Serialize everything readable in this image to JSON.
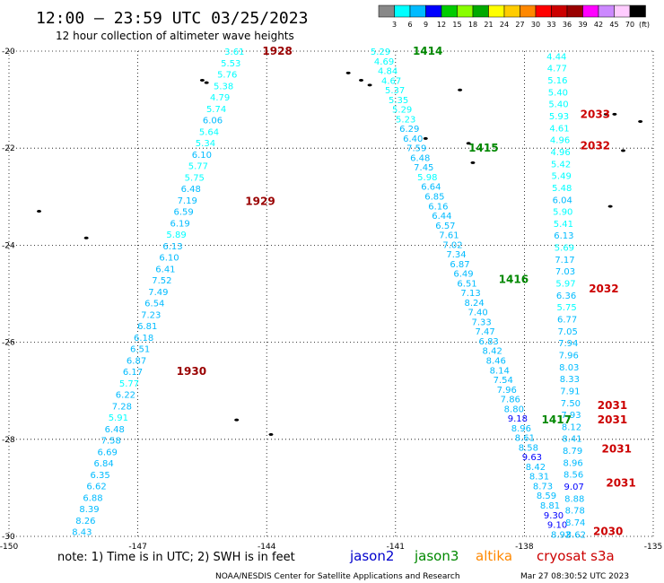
{
  "header": {
    "title": "12:00 – 23:59 UTC 03/25/2023",
    "subtitle": "12 hour collection of altimeter wave heights"
  },
  "legend": {
    "unit": "(ft)",
    "colors": [
      "#888888",
      "#00ffff",
      "#00bbff",
      "#0000ff",
      "#00cc00",
      "#88ff00",
      "#00aa00",
      "#ffff00",
      "#ffcc00",
      "#ff8800",
      "#ff0000",
      "#cc0000",
      "#990000",
      "#ff00ff",
      "#cc88ff",
      "#ffccff",
      "#000000"
    ],
    "labels": [
      "3",
      "6",
      "9",
      "12",
      "15",
      "18",
      "21",
      "24",
      "27",
      "30",
      "33",
      "36",
      "39",
      "42",
      "45",
      "70"
    ]
  },
  "axes": {
    "x_ticks": [
      "-150",
      "-147",
      "-144",
      "-141",
      "-138",
      "-135"
    ],
    "y_ticks": [
      "-20",
      "-22",
      "-24",
      "-26",
      "-28",
      "-30"
    ]
  },
  "footer": {
    "note": "note: 1) Time is in UTC; 2) SWH is in feet",
    "satellites": [
      {
        "name": "jason2",
        "color": "#0000cc"
      },
      {
        "name": "jason3",
        "color": "#008800"
      },
      {
        "name": "altika",
        "color": "#ff8800"
      },
      {
        "name": "cryosat s3a",
        "color": "#cc0000"
      }
    ],
    "credit": "NOAA/NESDIS Center for Satellite Applications and Research",
    "timestamp": "Mar 27 08:30:52 UTC 2023"
  },
  "chart_data": {
    "type": "scatter",
    "xlim": [
      -150,
      -135
    ],
    "ylim": [
      -30,
      -20
    ],
    "grid": true,
    "color_scale_ft": [
      3,
      6,
      9,
      12,
      15,
      18,
      21,
      24,
      27,
      30,
      33,
      36,
      39,
      42,
      45,
      70
    ],
    "pass_labels": [
      {
        "text": "1928",
        "x": -144.1,
        "y": -20.0,
        "color": "#990000"
      },
      {
        "text": "1929",
        "x": -144.5,
        "y": -23.1,
        "color": "#990000"
      },
      {
        "text": "1930",
        "x": -146.1,
        "y": -26.6,
        "color": "#990000"
      },
      {
        "text": "1414",
        "x": -140.6,
        "y": -20.0,
        "color": "#008800"
      },
      {
        "text": "1415",
        "x": -139.3,
        "y": -22.0,
        "color": "#008800"
      },
      {
        "text": "1416",
        "x": -138.6,
        "y": -24.7,
        "color": "#008800"
      },
      {
        "text": "1417",
        "x": -137.6,
        "y": -27.6,
        "color": "#008800"
      },
      {
        "text": "2033",
        "x": -136.7,
        "y": -21.3,
        "color": "#cc0000"
      },
      {
        "text": "2032",
        "x": -136.7,
        "y": -21.95,
        "color": "#cc0000"
      },
      {
        "text": "2032",
        "x": -136.5,
        "y": -24.9,
        "color": "#cc0000"
      },
      {
        "text": "2031",
        "x": -136.3,
        "y": -27.3,
        "color": "#cc0000"
      },
      {
        "text": "2031",
        "x": -136.3,
        "y": -27.6,
        "color": "#cc0000"
      },
      {
        "text": "2031",
        "x": -136.2,
        "y": -28.2,
        "color": "#cc0000"
      },
      {
        "text": "2031",
        "x": -136.1,
        "y": -28.9,
        "color": "#cc0000"
      },
      {
        "text": "2030",
        "x": -136.4,
        "y": -29.9,
        "color": "#cc0000"
      }
    ],
    "series": [
      {
        "name": "1928",
        "color_ft": [
          3.61,
          5.53,
          5.76,
          5.38,
          4.79,
          5.74,
          6.06,
          5.64,
          5.34,
          6.1,
          5.77,
          5.75,
          6.48,
          7.19,
          6.59,
          6.19,
          5.89,
          6.13,
          6.1,
          6.41,
          7.52,
          7.49,
          6.54,
          7.23,
          6.81,
          6.18,
          6.51,
          6.87,
          6.17,
          5.77,
          6.22,
          7.28,
          5.91,
          6.48,
          7.58,
          6.69,
          6.84,
          6.35,
          6.62,
          6.88,
          8.39,
          8.26,
          8.43
        ],
        "x_start": -144.75,
        "x_end": -148.3,
        "y_start": -20.0,
        "y_end": -29.9
      },
      {
        "name": "1414",
        "color_ft": [
          5.29,
          4.69,
          4.84,
          4.67,
          5.37,
          5.35,
          5.29,
          5.23,
          6.29,
          6.4,
          7.59,
          6.48,
          7.45,
          5.98,
          6.64,
          6.85,
          6.16,
          6.44,
          6.57,
          7.61,
          7.02,
          7.34,
          6.87,
          6.49,
          6.51,
          7.13,
          8.24,
          7.4,
          7.33,
          7.47,
          6.83,
          8.42,
          8.46,
          8.14,
          7.54,
          7.96,
          7.86,
          8.8,
          9.18,
          8.96,
          8.61,
          8.58,
          9.63,
          8.42,
          8.31,
          8.73,
          8.59,
          8.81,
          9.3,
          9.1,
          8.92
        ],
        "x_start": -141.35,
        "x_end": -137.15,
        "y_start": -20.0,
        "y_end": -29.95
      },
      {
        "name": "2033",
        "color_ft": [
          4.44,
          4.77,
          5.16,
          5.4,
          5.4,
          5.93,
          4.61,
          4.96,
          4.96,
          5.42,
          5.49,
          5.48,
          6.04,
          5.9,
          5.41,
          6.13,
          5.69,
          7.17,
          7.03,
          5.97,
          6.36,
          5.75,
          6.77,
          7.05,
          7.94,
          7.96,
          8.03,
          8.33,
          7.91,
          7.5,
          7.93,
          8.12,
          8.41,
          8.79,
          8.96,
          8.56,
          9.07,
          8.88,
          8.78,
          8.74,
          8.62
        ],
        "x_start": -137.25,
        "x_end": -136.8,
        "y_start": -20.1,
        "y_end": -29.95
      }
    ],
    "land": [
      {
        "x": -145.5,
        "y": -20.6
      },
      {
        "x": -145.4,
        "y": -20.65
      },
      {
        "x": -142.1,
        "y": -20.45
      },
      {
        "x": -141.8,
        "y": -20.6
      },
      {
        "x": -141.6,
        "y": -20.7
      },
      {
        "x": -139.5,
        "y": -20.8
      },
      {
        "x": -140.3,
        "y": -21.8
      },
      {
        "x": -139.3,
        "y": -21.9
      },
      {
        "x": -139.2,
        "y": -22.3
      },
      {
        "x": -136.1,
        "y": -21.3
      },
      {
        "x": -135.9,
        "y": -21.3
      },
      {
        "x": -135.3,
        "y": -21.45
      },
      {
        "x": -135.7,
        "y": -22.05
      },
      {
        "x": -136.0,
        "y": -23.2
      },
      {
        "x": -149.3,
        "y": -23.3
      },
      {
        "x": -148.2,
        "y": -23.85
      },
      {
        "x": -144.7,
        "y": -27.6
      },
      {
        "x": -143.9,
        "y": -27.9
      }
    ]
  }
}
